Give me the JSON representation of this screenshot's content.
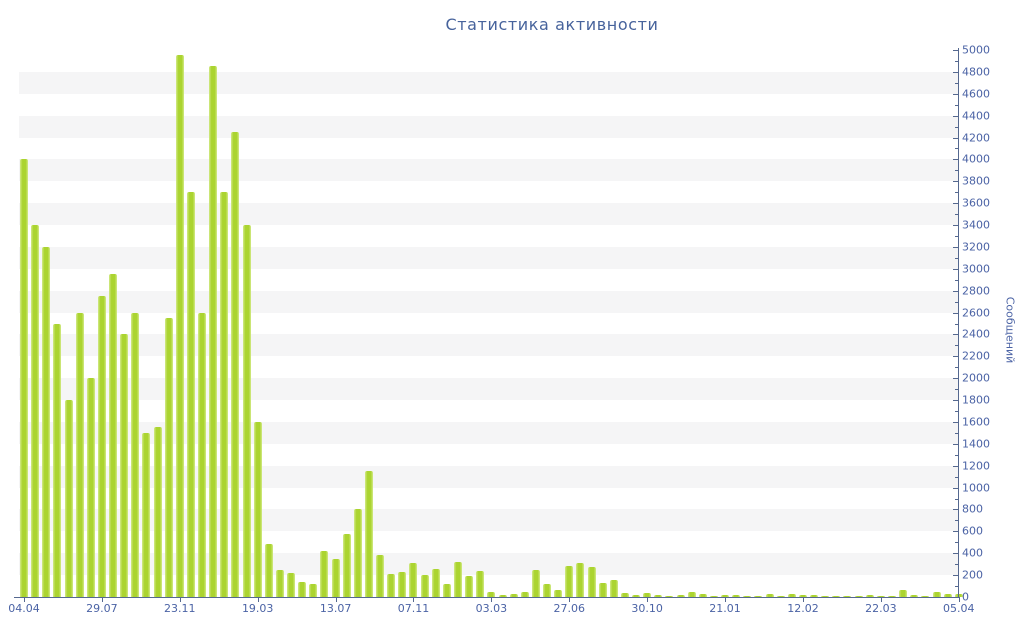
{
  "chart_data": {
    "type": "bar",
    "title": "Статистика активности",
    "ylabel": "Сообщений",
    "xlabel": "",
    "ylim": [
      0,
      5000
    ],
    "y_tick_step": 200,
    "y_minor_tick_step": 100,
    "y_tick_labels": [
      "0",
      "200",
      "400",
      "600",
      "800",
      "1000",
      "1200",
      "1400",
      "1600",
      "1800",
      "2000",
      "2200",
      "2400",
      "2600",
      "2800",
      "3000",
      "3200",
      "3400",
      "3600",
      "3800",
      "4000",
      "4200",
      "4400",
      "4600",
      "4800",
      "5000"
    ],
    "x_tick_labels": [
      "04.04",
      "29.07",
      "23.11",
      "19.03",
      "13.07",
      "07.11",
      "03.03",
      "27.06",
      "30.10",
      "21.01",
      "12.02",
      "22.03",
      "05.04"
    ],
    "x_tick_every": 7,
    "grid": "alternating-horizontal-bands-200",
    "legend": "none",
    "values": [
      4000,
      3400,
      3200,
      2500,
      1800,
      2600,
      2000,
      2750,
      2950,
      2400,
      2600,
      1500,
      1550,
      2550,
      4950,
      3700,
      2600,
      4850,
      3700,
      4250,
      3400,
      1600,
      480,
      250,
      220,
      140,
      120,
      420,
      350,
      580,
      800,
      1150,
      380,
      210,
      230,
      310,
      200,
      260,
      120,
      320,
      190,
      240,
      50,
      20,
      30,
      50,
      250,
      120,
      60,
      280,
      310,
      270,
      130,
      160,
      40,
      20,
      40,
      15,
      10,
      20,
      50,
      25,
      10,
      15,
      20,
      10,
      10,
      25,
      10,
      30,
      20,
      15,
      12,
      10,
      12,
      10,
      15,
      10,
      10,
      65,
      15,
      10,
      50,
      30,
      30
    ]
  },
  "colors": {
    "background": "#ffffff",
    "bar": "#abd430",
    "bar_highlight": "#d3ea88",
    "axis_line": "#55688f",
    "tick_label": "#4b63a5",
    "title": "#47639c",
    "stripe": "#f5f5f6"
  }
}
